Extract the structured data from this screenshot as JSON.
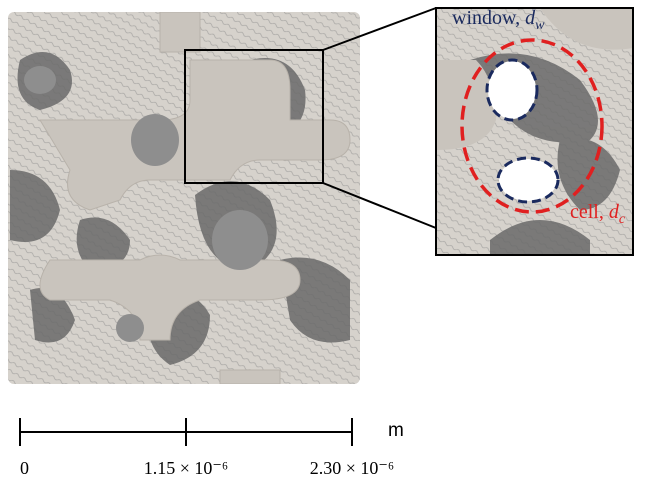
{
  "figure": {
    "annotations": {
      "window": {
        "label": "window,",
        "symbol": "d",
        "subscript": "w"
      },
      "cell": {
        "label": "cell,",
        "symbol": "d",
        "subscript": "c"
      }
    },
    "scale_bar": {
      "unit": "m",
      "ticks": [
        {
          "value": 0,
          "label": "0"
        },
        {
          "value": 1.15e-06,
          "label": "1.15 × 10⁻⁶"
        },
        {
          "value": 2.3e-06,
          "label": "2.30 × 10⁻⁶"
        }
      ]
    }
  }
}
